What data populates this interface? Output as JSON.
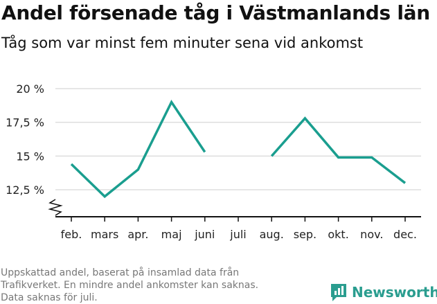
{
  "header": {
    "title": "Andel försenade tåg i Västmanlands län",
    "subtitle": "Tåg som var minst fem minuter sena vid ankomst"
  },
  "footer": {
    "lines": [
      "Uppskattad andel, baserat på insamlad data från",
      "Trafikverket. En mindre andel ankomster kan saknas.",
      "Data saknas för juli."
    ]
  },
  "brand": {
    "name": "Newsworthy",
    "color": "#2a9d8f",
    "icon": "newsworthy-logo-icon"
  },
  "chart_data": {
    "type": "line",
    "categories": [
      "feb.",
      "mars",
      "apr.",
      "maj",
      "juni",
      "juli",
      "aug.",
      "sep.",
      "okt.",
      "nov.",
      "dec."
    ],
    "series": [
      {
        "values": [
          14.4,
          12.0,
          14.0,
          19.0,
          15.3,
          null,
          15.0,
          17.8,
          14.9,
          14.9,
          13.0
        ]
      }
    ],
    "y_ticks": [
      {
        "value": 12.5,
        "label": "12,5 %"
      },
      {
        "value": 15,
        "label": "15 %"
      },
      {
        "value": 17.5,
        "label": "17,5 %"
      },
      {
        "value": 20,
        "label": "20 %"
      }
    ],
    "ylim": [
      10.5,
      20
    ],
    "y_axis_break": true,
    "grid": true,
    "line_color": "#1a9e8f",
    "grid_color": "#dddddd"
  }
}
